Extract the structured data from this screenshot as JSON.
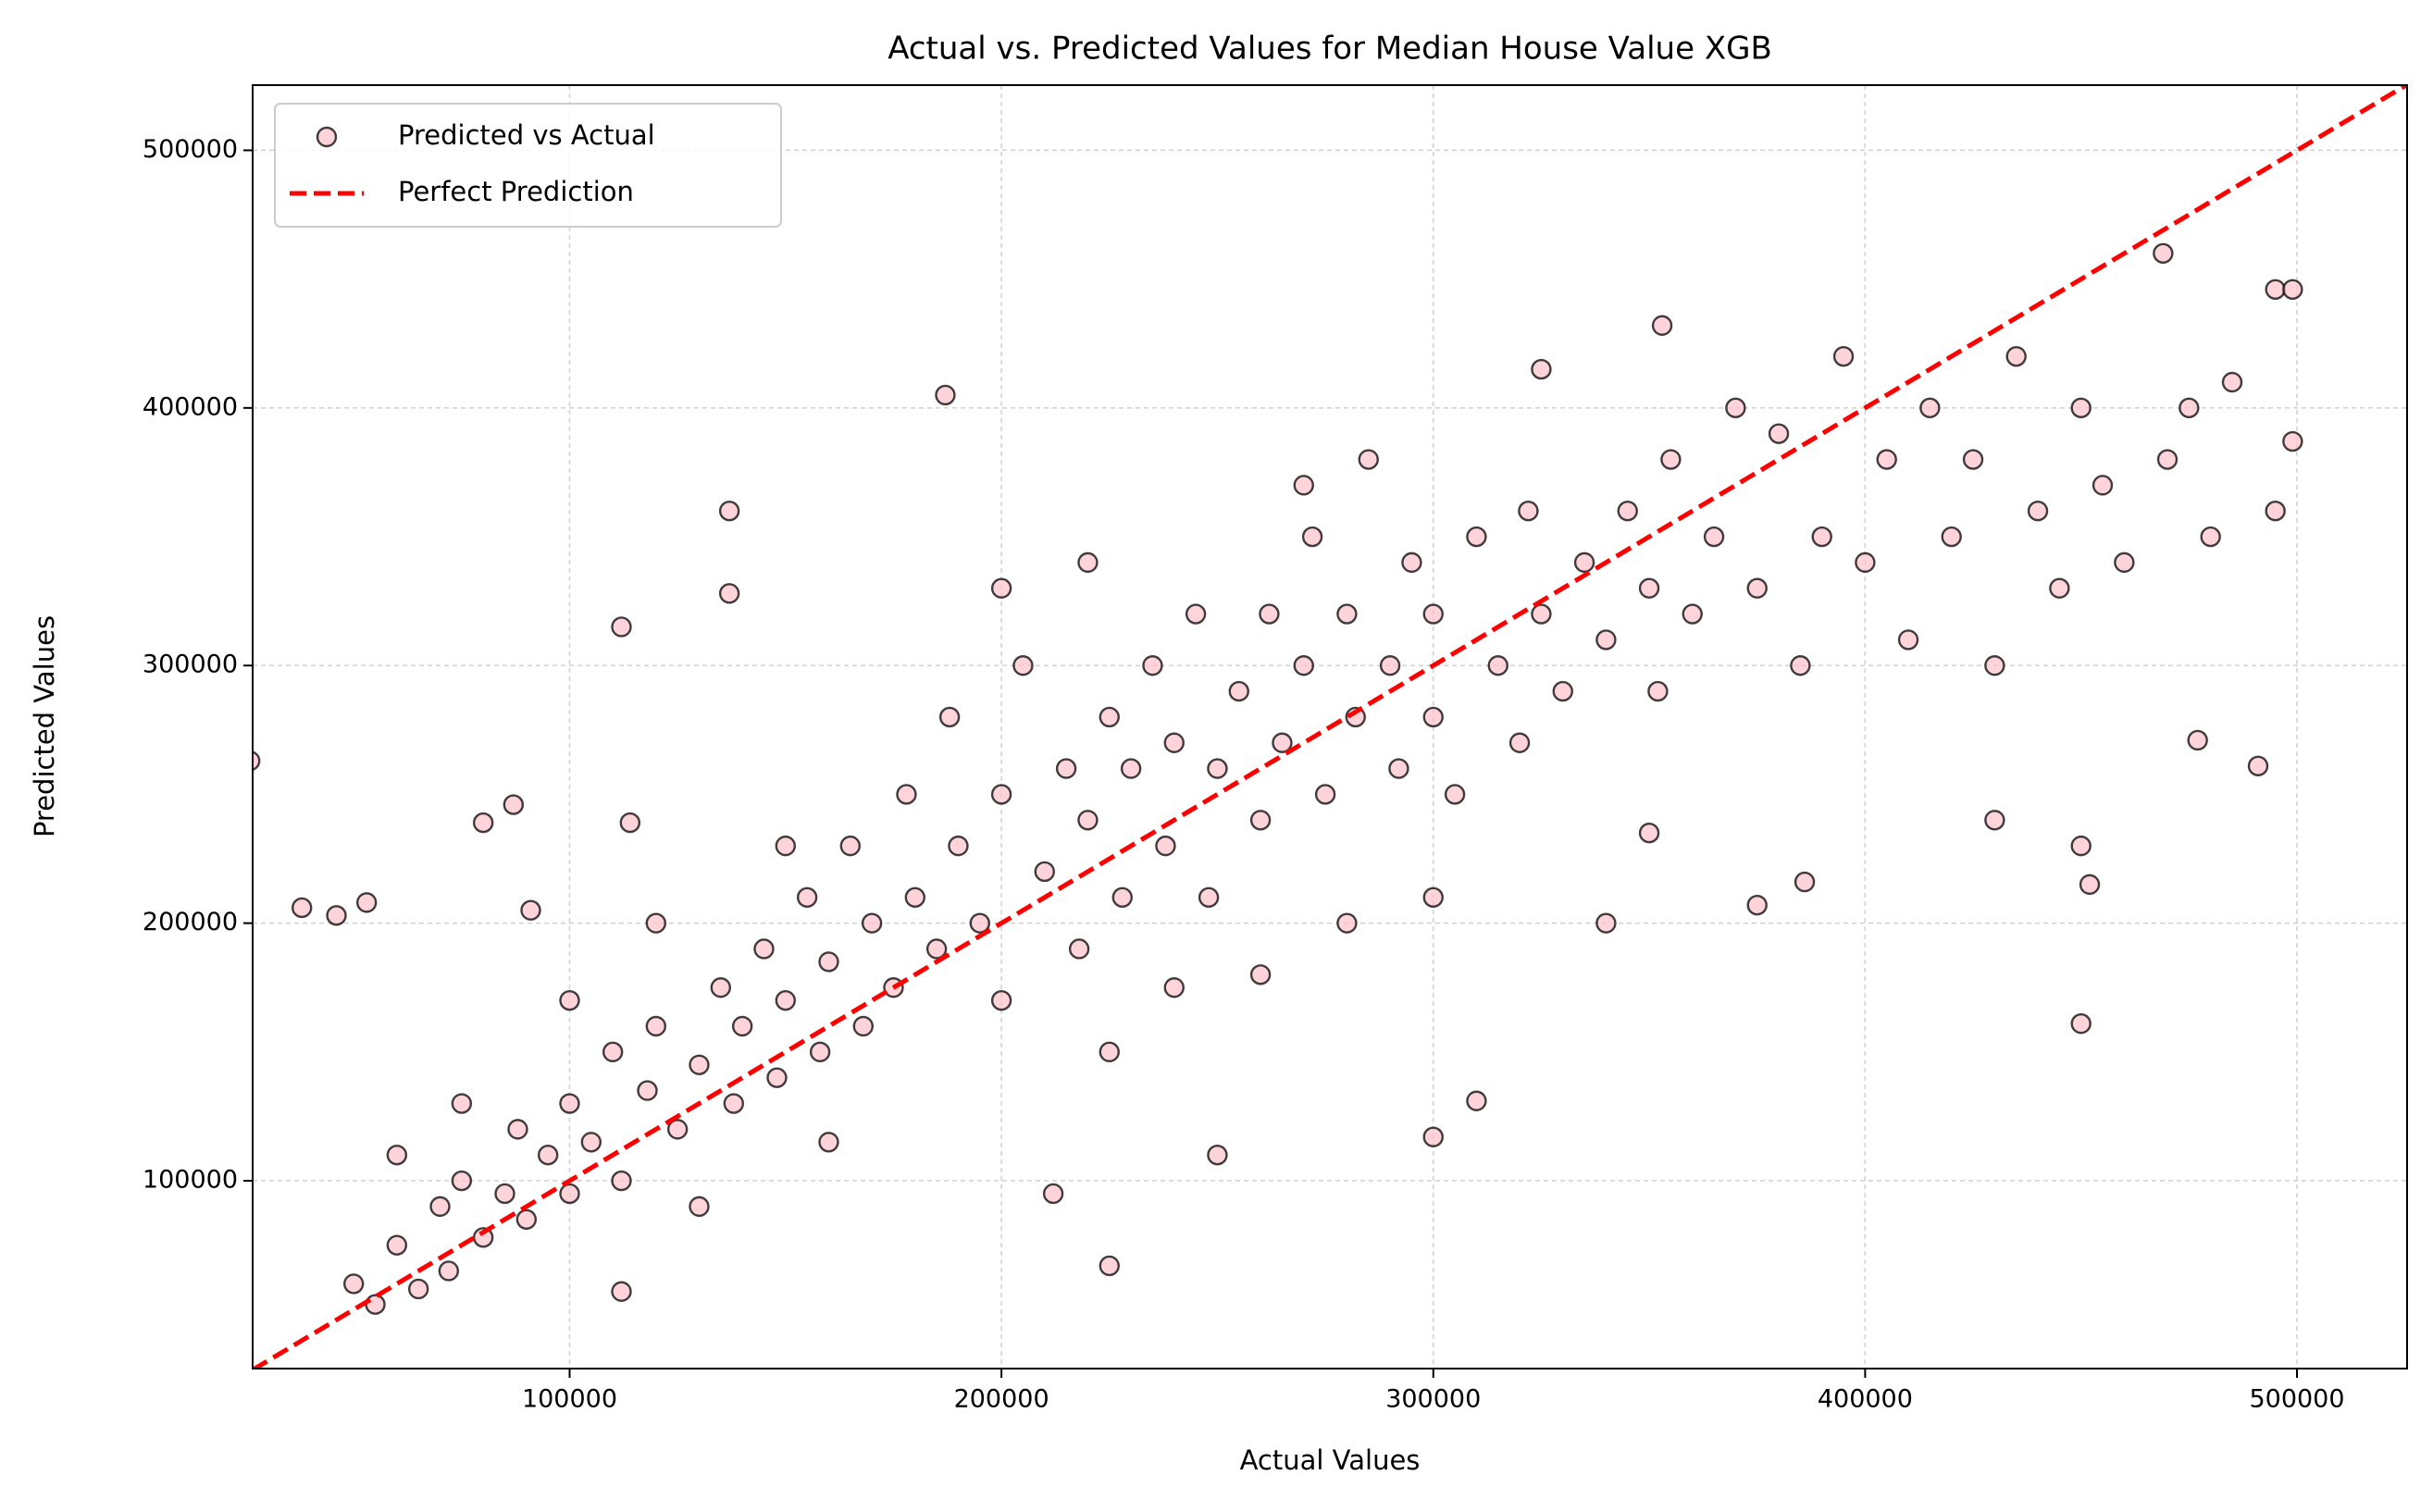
{
  "chart_data": {
    "type": "scatter",
    "title": "Actual vs. Predicted Values for Median House Value XGB",
    "x_label": "Actual Values",
    "y_label": "Predicted Values",
    "xlim": [
      26600,
      525500
    ],
    "ylim": [
      27100,
      525300
    ],
    "xticks": [
      100000,
      200000,
      300000,
      400000,
      500000
    ],
    "yticks": [
      100000,
      200000,
      300000,
      400000,
      500000
    ],
    "grid": true,
    "legend": "upper left",
    "series": [
      {
        "name": "Predicted vs Actual",
        "type": "scatter",
        "color": "#ffc0cb",
        "edgecolor": "#000000",
        "x": [
          50000,
          55000,
          60000,
          65000,
          70000,
          72000,
          75000,
          80000,
          85000,
          88000,
          90000,
          95000,
          100000,
          100000,
          105000,
          110000,
          112000,
          118000,
          120000,
          125000,
          130000,
          135000,
          138000,
          140000,
          145000,
          148000,
          150000,
          155000,
          158000,
          160000,
          165000,
          168000,
          170000,
          175000,
          178000,
          180000,
          185000,
          188000,
          190000,
          195000,
          200000,
          200000,
          205000,
          210000,
          215000,
          218000,
          220000,
          225000,
          228000,
          230000,
          235000,
          238000,
          240000,
          245000,
          248000,
          250000,
          255000,
          260000,
          262000,
          265000,
          270000,
          272000,
          275000,
          280000,
          282000,
          285000,
          290000,
          292000,
          295000,
          300000,
          300000,
          305000,
          310000,
          315000,
          320000,
          322000,
          325000,
          330000,
          335000,
          340000,
          345000,
          350000,
          352000,
          355000,
          360000,
          365000,
          370000,
          375000,
          380000,
          385000,
          390000,
          395000,
          400000,
          405000,
          410000,
          415000,
          420000,
          425000,
          430000,
          435000,
          440000,
          445000,
          450000,
          455000,
          460000,
          470000,
          475000,
          480000,
          485000,
          495000,
          499000,
          225000,
          260000,
          240000,
          300000,
          350000,
          340000,
          280000,
          160000,
          130000,
          75000,
          60000,
          100000,
          150000,
          120000,
          200000,
          220000,
          270000,
          430000,
          450000,
          26000,
          187000,
          137000,
          137000,
          112000,
          225000,
          212000,
          450000,
          491000,
          477000,
          353000,
          469000,
          495000,
          499000,
          300000,
          310000,
          250000,
          325000,
          112000,
          53000,
          38000,
          46000,
          91000,
          87000,
          80000,
          114000,
          452000,
          375000,
          386000
        ],
        "values": [
          60000,
          52000,
          75000,
          58000,
          90000,
          65000,
          100000,
          78000,
          95000,
          120000,
          85000,
          110000,
          95000,
          130000,
          115000,
          150000,
          100000,
          135000,
          160000,
          120000,
          145000,
          175000,
          130000,
          160000,
          190000,
          140000,
          170000,
          210000,
          150000,
          185000,
          230000,
          160000,
          200000,
          175000,
          250000,
          210000,
          190000,
          280000,
          230000,
          200000,
          250000,
          170000,
          300000,
          220000,
          260000,
          190000,
          240000,
          280000,
          210000,
          260000,
          300000,
          230000,
          270000,
          320000,
          210000,
          260000,
          290000,
          240000,
          320000,
          270000,
          300000,
          350000,
          250000,
          320000,
          280000,
          380000,
          300000,
          260000,
          340000,
          280000,
          320000,
          250000,
          350000,
          300000,
          270000,
          360000,
          320000,
          290000,
          340000,
          310000,
          360000,
          330000,
          290000,
          380000,
          320000,
          350000,
          400000,
          330000,
          390000,
          300000,
          350000,
          420000,
          340000,
          380000,
          310000,
          400000,
          350000,
          380000,
          300000,
          420000,
          360000,
          330000,
          400000,
          370000,
          340000,
          380000,
          400000,
          350000,
          410000,
          360000,
          387000,
          150000,
          180000,
          175000,
          210000,
          235000,
          200000,
          200000,
          115000,
          90000,
          130000,
          110000,
          170000,
          230000,
          200000,
          330000,
          340000,
          370000,
          240000,
          230000,
          263000,
          405000,
          360000,
          328000,
          315000,
          67000,
          95000,
          161000,
          261000,
          271000,
          432000,
          460000,
          446000,
          446000,
          117000,
          131000,
          110000,
          415000,
          57000,
          208000,
          206000,
          203000,
          205000,
          246000,
          239000,
          239000,
          215000,
          207000,
          216000
        ]
      },
      {
        "name": "Perfect Prediction",
        "type": "line",
        "color": "#ff0000",
        "x": [
          26600,
          525500
        ],
        "values": [
          26600,
          525500
        ]
      }
    ]
  }
}
